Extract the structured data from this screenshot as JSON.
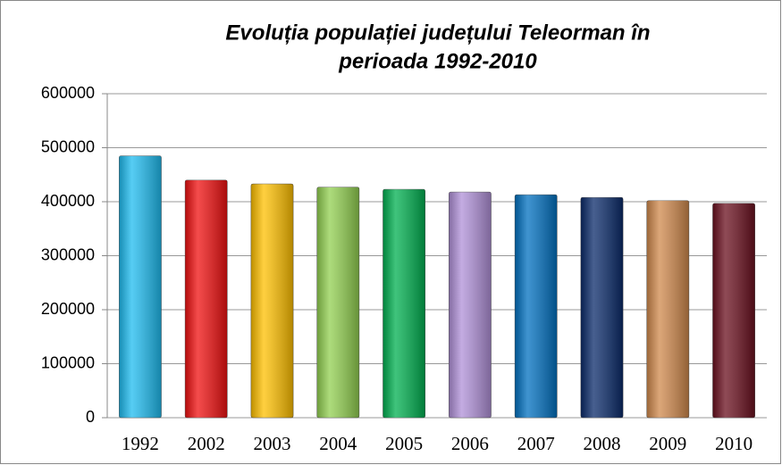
{
  "chart_data": {
    "type": "bar",
    "title_lines": [
      "Evoluția populației județului Teleorman în",
      "perioada 1992-2010"
    ],
    "categories": [
      "1992",
      "2002",
      "2003",
      "2004",
      "2005",
      "2006",
      "2007",
      "2008",
      "2009",
      "2010"
    ],
    "values": [
      485000,
      440000,
      433000,
      427000,
      423000,
      418000,
      413000,
      408000,
      402000,
      397000
    ],
    "colors": [
      "#1ebcf0",
      "#f01010",
      "#ffc000",
      "#92d050",
      "#00b050",
      "#b090d8",
      "#0070c0",
      "#0a2a6a",
      "#d0894c",
      "#6a0f1e"
    ],
    "ylim": [
      0,
      600000
    ],
    "yticks": [
      0,
      100000,
      200000,
      300000,
      400000,
      500000,
      600000
    ],
    "grid": true
  }
}
